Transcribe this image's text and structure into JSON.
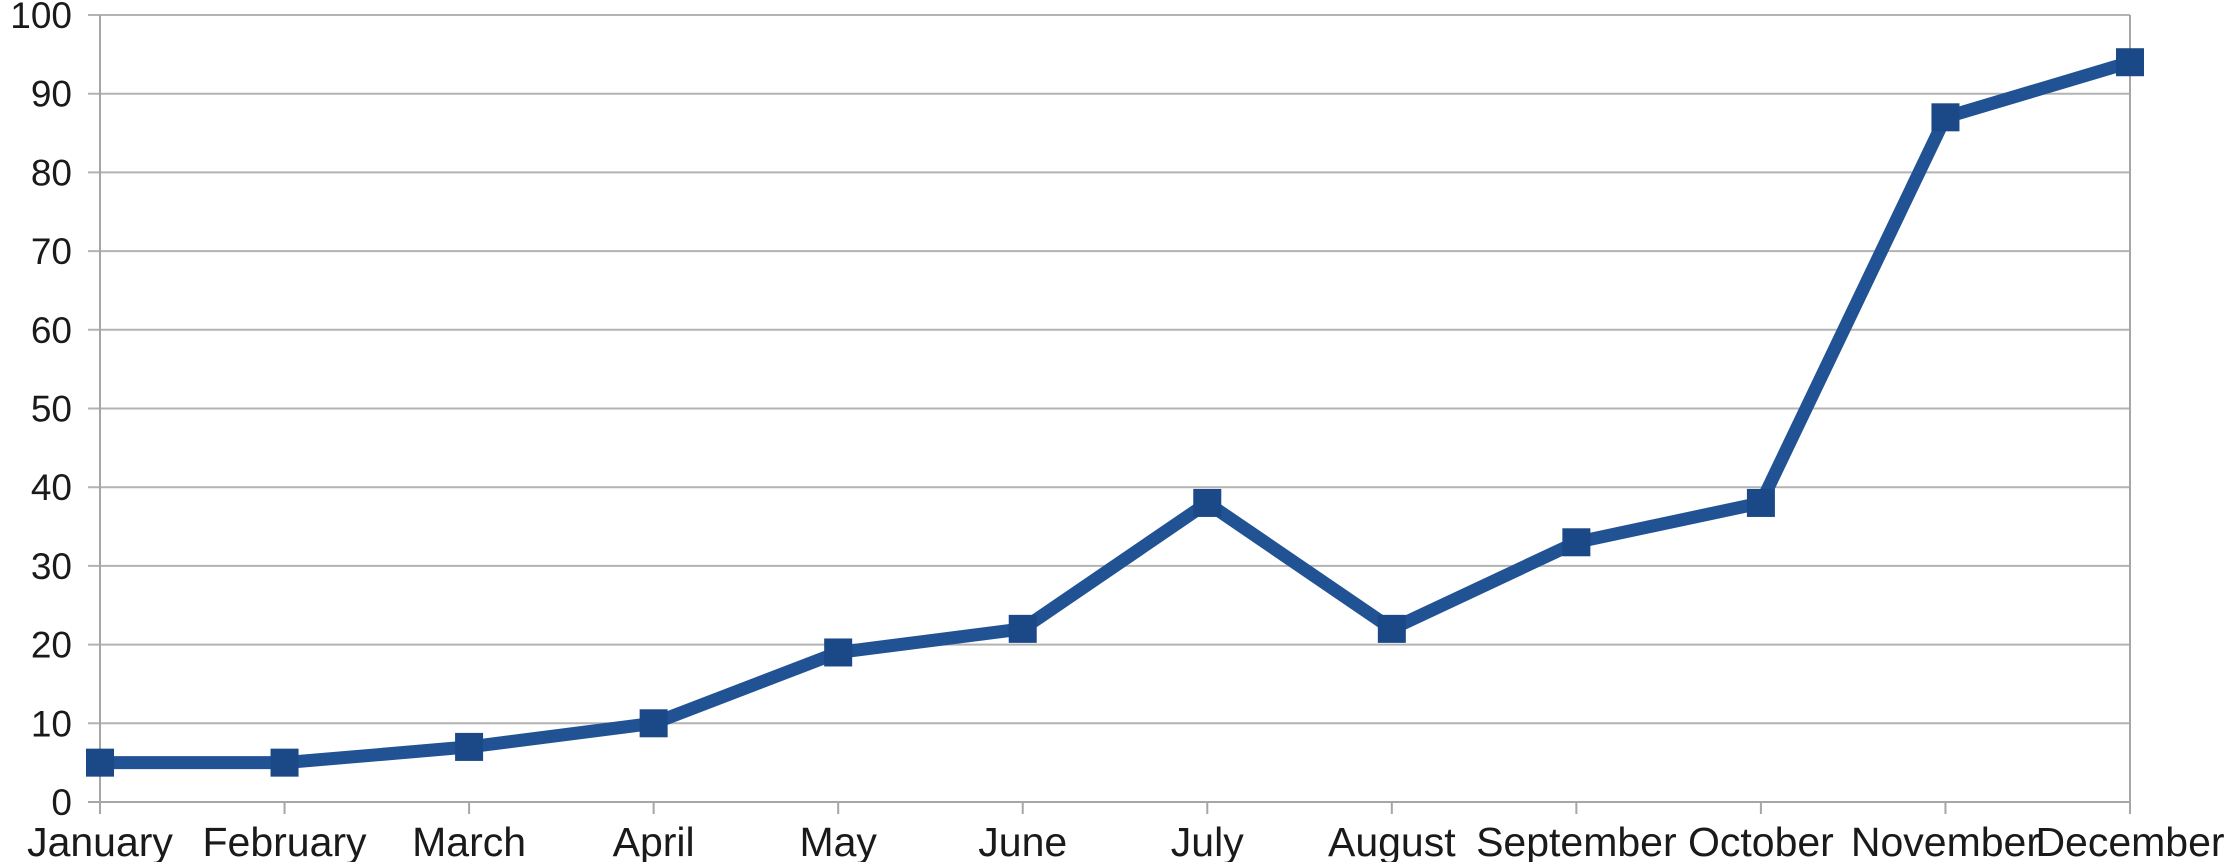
{
  "chart_data": {
    "type": "line",
    "title": "",
    "xlabel": "",
    "ylabel": "",
    "categories": [
      "January",
      "February",
      "March",
      "April",
      "May",
      "June",
      "July",
      "August",
      "September",
      "October",
      "November",
      "December"
    ],
    "values": [
      5,
      5,
      7,
      10,
      19,
      22,
      38,
      22,
      33,
      38,
      87,
      94
    ],
    "ylim": [
      0,
      100
    ],
    "ytick_step": 10,
    "yticks": [
      0,
      10,
      20,
      30,
      40,
      50,
      60,
      70,
      80,
      90,
      100
    ],
    "grid": true,
    "legend": false,
    "marker": "square",
    "colors": {
      "line": "#215394",
      "marker": "#1b4886",
      "grid": "#b3b3b3",
      "axis": "#a6a6a6",
      "text": "#1a1a1a",
      "background": "#ffffff"
    }
  }
}
